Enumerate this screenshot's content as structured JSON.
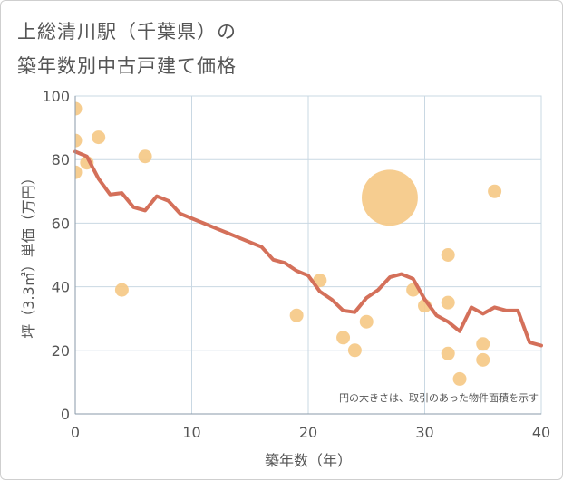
{
  "header": {
    "title_line1": "上総清川駅（千葉県）の",
    "title_line2": "築年数別中古戸建て価格"
  },
  "chart_data": {
    "type": "scatter",
    "title": "上総清川駅（千葉県）の築年数別中古戸建て価格",
    "xlabel": "築年数（年）",
    "ylabel": "坪（3.3㎡）単価（万円）",
    "xlim": [
      0,
      40
    ],
    "ylim": [
      0,
      100
    ],
    "xticks": [
      0,
      10,
      20,
      30,
      40
    ],
    "yticks": [
      0,
      20,
      40,
      60,
      80,
      100
    ],
    "grid": true,
    "note": "円の大きさは、取引のあった物件面積を示す",
    "colors": {
      "bubble": "#f5c987",
      "trend": "#d4705a",
      "grid": "#c9d8e3",
      "text": "#555555"
    },
    "points": [
      {
        "x": 0,
        "y": 96,
        "size": 1
      },
      {
        "x": 0,
        "y": 86,
        "size": 1
      },
      {
        "x": 0,
        "y": 76,
        "size": 1
      },
      {
        "x": 1,
        "y": 79,
        "size": 1
      },
      {
        "x": 2,
        "y": 87,
        "size": 1
      },
      {
        "x": 4,
        "y": 39,
        "size": 1
      },
      {
        "x": 6,
        "y": 81,
        "size": 1
      },
      {
        "x": 19,
        "y": 31,
        "size": 1
      },
      {
        "x": 21,
        "y": 42,
        "size": 1
      },
      {
        "x": 23,
        "y": 24,
        "size": 1
      },
      {
        "x": 24,
        "y": 20,
        "size": 1
      },
      {
        "x": 25,
        "y": 29,
        "size": 1
      },
      {
        "x": 27,
        "y": 68,
        "size": 17
      },
      {
        "x": 29,
        "y": 39,
        "size": 1
      },
      {
        "x": 30,
        "y": 34,
        "size": 1
      },
      {
        "x": 32,
        "y": 50,
        "size": 1
      },
      {
        "x": 32,
        "y": 35,
        "size": 1
      },
      {
        "x": 32,
        "y": 19,
        "size": 1
      },
      {
        "x": 33,
        "y": 11,
        "size": 1
      },
      {
        "x": 35,
        "y": 22,
        "size": 1
      },
      {
        "x": 35,
        "y": 17,
        "size": 1
      },
      {
        "x": 36,
        "y": 70,
        "size": 1
      }
    ],
    "trend": {
      "x": [
        0,
        1,
        2,
        3,
        4,
        5,
        6,
        7,
        8,
        9,
        10,
        11,
        12,
        13,
        14,
        15,
        16,
        17,
        18,
        19,
        20,
        21,
        22,
        23,
        24,
        25,
        26,
        27,
        28,
        29,
        30,
        31,
        32,
        33,
        34,
        35,
        36,
        37,
        38,
        39,
        40
      ],
      "y": [
        82.5,
        81,
        74,
        69,
        69.5,
        65,
        64,
        68.5,
        67,
        63,
        61.5,
        60,
        58.5,
        57,
        55.5,
        54,
        52.5,
        48.5,
        47.5,
        45,
        43.5,
        38.5,
        36,
        32.5,
        32,
        36.5,
        39,
        43,
        44,
        42.5,
        36,
        31,
        29,
        26,
        33.5,
        31.5,
        33.5,
        32.5,
        32.5,
        22.5,
        21.5
      ]
    }
  }
}
